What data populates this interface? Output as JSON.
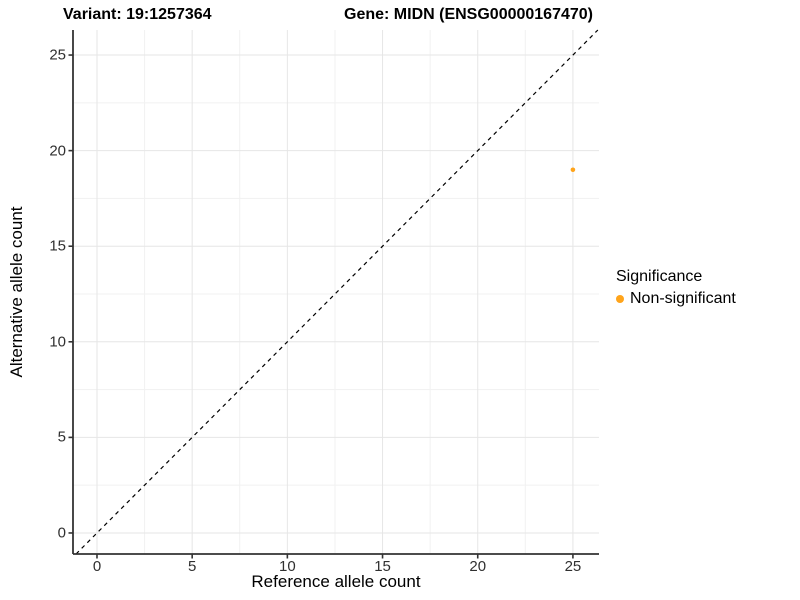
{
  "colors": {
    "background": "#FFFFFF",
    "accent_orange": "#FFA41B",
    "axis_line": "#333333",
    "tick_label": "#303030",
    "grid_major": "#E6E6E6",
    "grid_minor": "#F1F1F1",
    "identity_line": "#000000"
  },
  "chart_data": {
    "type": "scatter",
    "title_left": "Variant: 19:1257364",
    "title_right": "Gene: MIDN (ENSG00000167470)",
    "xlabel": "Reference allele count",
    "ylabel": "Alternative allele count",
    "xlim": [
      -1.26,
      26.37
    ],
    "ylim": [
      -1.1,
      26.31
    ],
    "x_ticks": [
      0,
      5,
      10,
      15,
      20,
      25
    ],
    "y_ticks": [
      0,
      5,
      10,
      15,
      20,
      25
    ],
    "minor_breaks": [
      2.5,
      7.5,
      12.5,
      17.5,
      22.5
    ],
    "grid": true,
    "identity_line": {
      "slope": 1,
      "intercept": 0,
      "style": "dashed",
      "color": "#000000"
    },
    "series": [
      {
        "name": "Non-significant",
        "color": "#FFA41B",
        "point_radius": 2.3,
        "points": [
          [
            25,
            19
          ]
        ]
      }
    ],
    "legend": {
      "title": "Significance",
      "position": "right",
      "entries": [
        {
          "label": "Non-significant",
          "color": "#FFA41B"
        }
      ]
    }
  }
}
